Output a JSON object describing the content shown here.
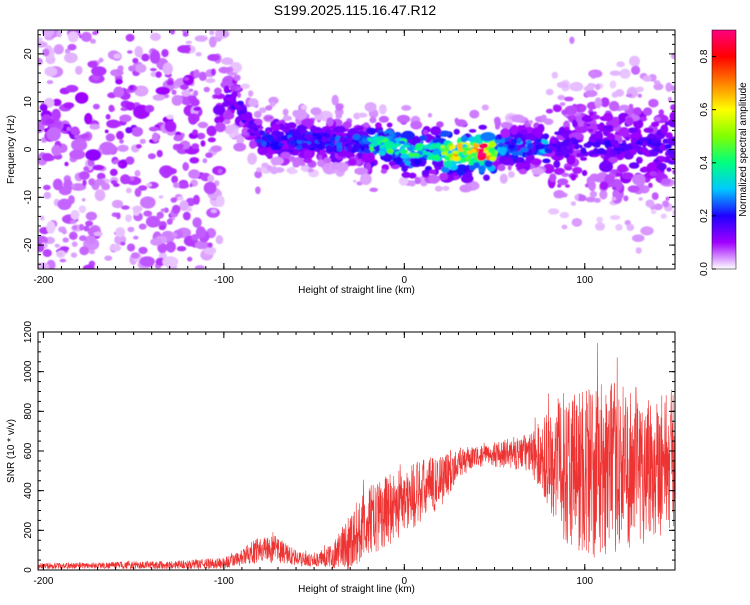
{
  "title": "S199.2025.115.16.47.R12",
  "colors": {
    "snr_line": "#ee3333",
    "background": "#ffffff",
    "axes": "#000000"
  },
  "chart_data": [
    {
      "type": "heatmap",
      "xlabel": "Height of straight line (km)",
      "ylabel": "Frequency (Hz)",
      "xlim": [
        -203,
        150
      ],
      "ylim": [
        -25,
        25
      ],
      "xticks": [
        -200,
        -100,
        0,
        100
      ],
      "yticks": [
        -20,
        -10,
        0,
        10,
        20
      ],
      "colorbar": {
        "label": "Normalized spectral amplitude",
        "range": [
          0,
          0.9
        ],
        "ticks": [
          "0.0",
          "0.2",
          "0.4",
          "0.6",
          "0.8"
        ],
        "colormap": [
          "#ffffff",
          "#a000ff",
          "#2000ff",
          "#00c8ff",
          "#00ff80",
          "#80ff00",
          "#ffff00",
          "#ff8000",
          "#ff0000",
          "#ff0080"
        ]
      },
      "grid": false,
      "features": [
        {
          "x_range": [
            -203,
            -100
          ],
          "freq_range": [
            -25,
            25
          ],
          "amplitude": 0.05,
          "description_level": "scattered"
        },
        {
          "x_range": [
            -100,
            -80
          ],
          "center_freq": 10,
          "amplitude": 0.15
        },
        {
          "x_range": [
            -80,
            0
          ],
          "center_freq": 1,
          "amplitude": 0.2
        },
        {
          "x_range": [
            0,
            50
          ],
          "center_freq": -1,
          "amplitude": 0.6
        },
        {
          "x_range": [
            40,
            45
          ],
          "center_freq": -1,
          "amplitude": 0.9
        },
        {
          "x_range": [
            50,
            150
          ],
          "center_freq": 0,
          "amplitude": 0.15
        }
      ]
    },
    {
      "type": "line",
      "xlabel": "Height of straight line (km)",
      "ylabel": "SNR (10 * v/v)",
      "xlim": [
        -203,
        150
      ],
      "ylim": [
        0,
        1200
      ],
      "xticks": [
        -200,
        -100,
        0,
        100
      ],
      "yticks": [
        0,
        200,
        400,
        600,
        800,
        1000,
        1200
      ],
      "grid": false,
      "series": [
        {
          "x": [
            -203,
            -180,
            -160,
            -140,
            -120,
            -100,
            -90,
            -80,
            -70,
            -60,
            -50,
            -40,
            -30,
            -20,
            -10,
            0,
            10,
            20,
            30,
            40,
            50,
            60,
            70,
            80,
            90,
            100,
            110,
            120,
            130,
            140,
            150
          ],
          "mean": [
            20,
            22,
            24,
            25,
            28,
            35,
            60,
            110,
            100,
            60,
            45,
            70,
            150,
            240,
            300,
            350,
            400,
            450,
            540,
            570,
            580,
            590,
            590,
            560,
            520,
            500,
            500,
            520,
            520,
            540,
            560
          ],
          "spread": [
            15,
            15,
            18,
            20,
            22,
            30,
            40,
            70,
            70,
            40,
            30,
            60,
            150,
            180,
            180,
            180,
            160,
            140,
            80,
            50,
            60,
            80,
            100,
            250,
            400,
            450,
            450,
            420,
            400,
            380,
            350
          ]
        }
      ]
    }
  ]
}
